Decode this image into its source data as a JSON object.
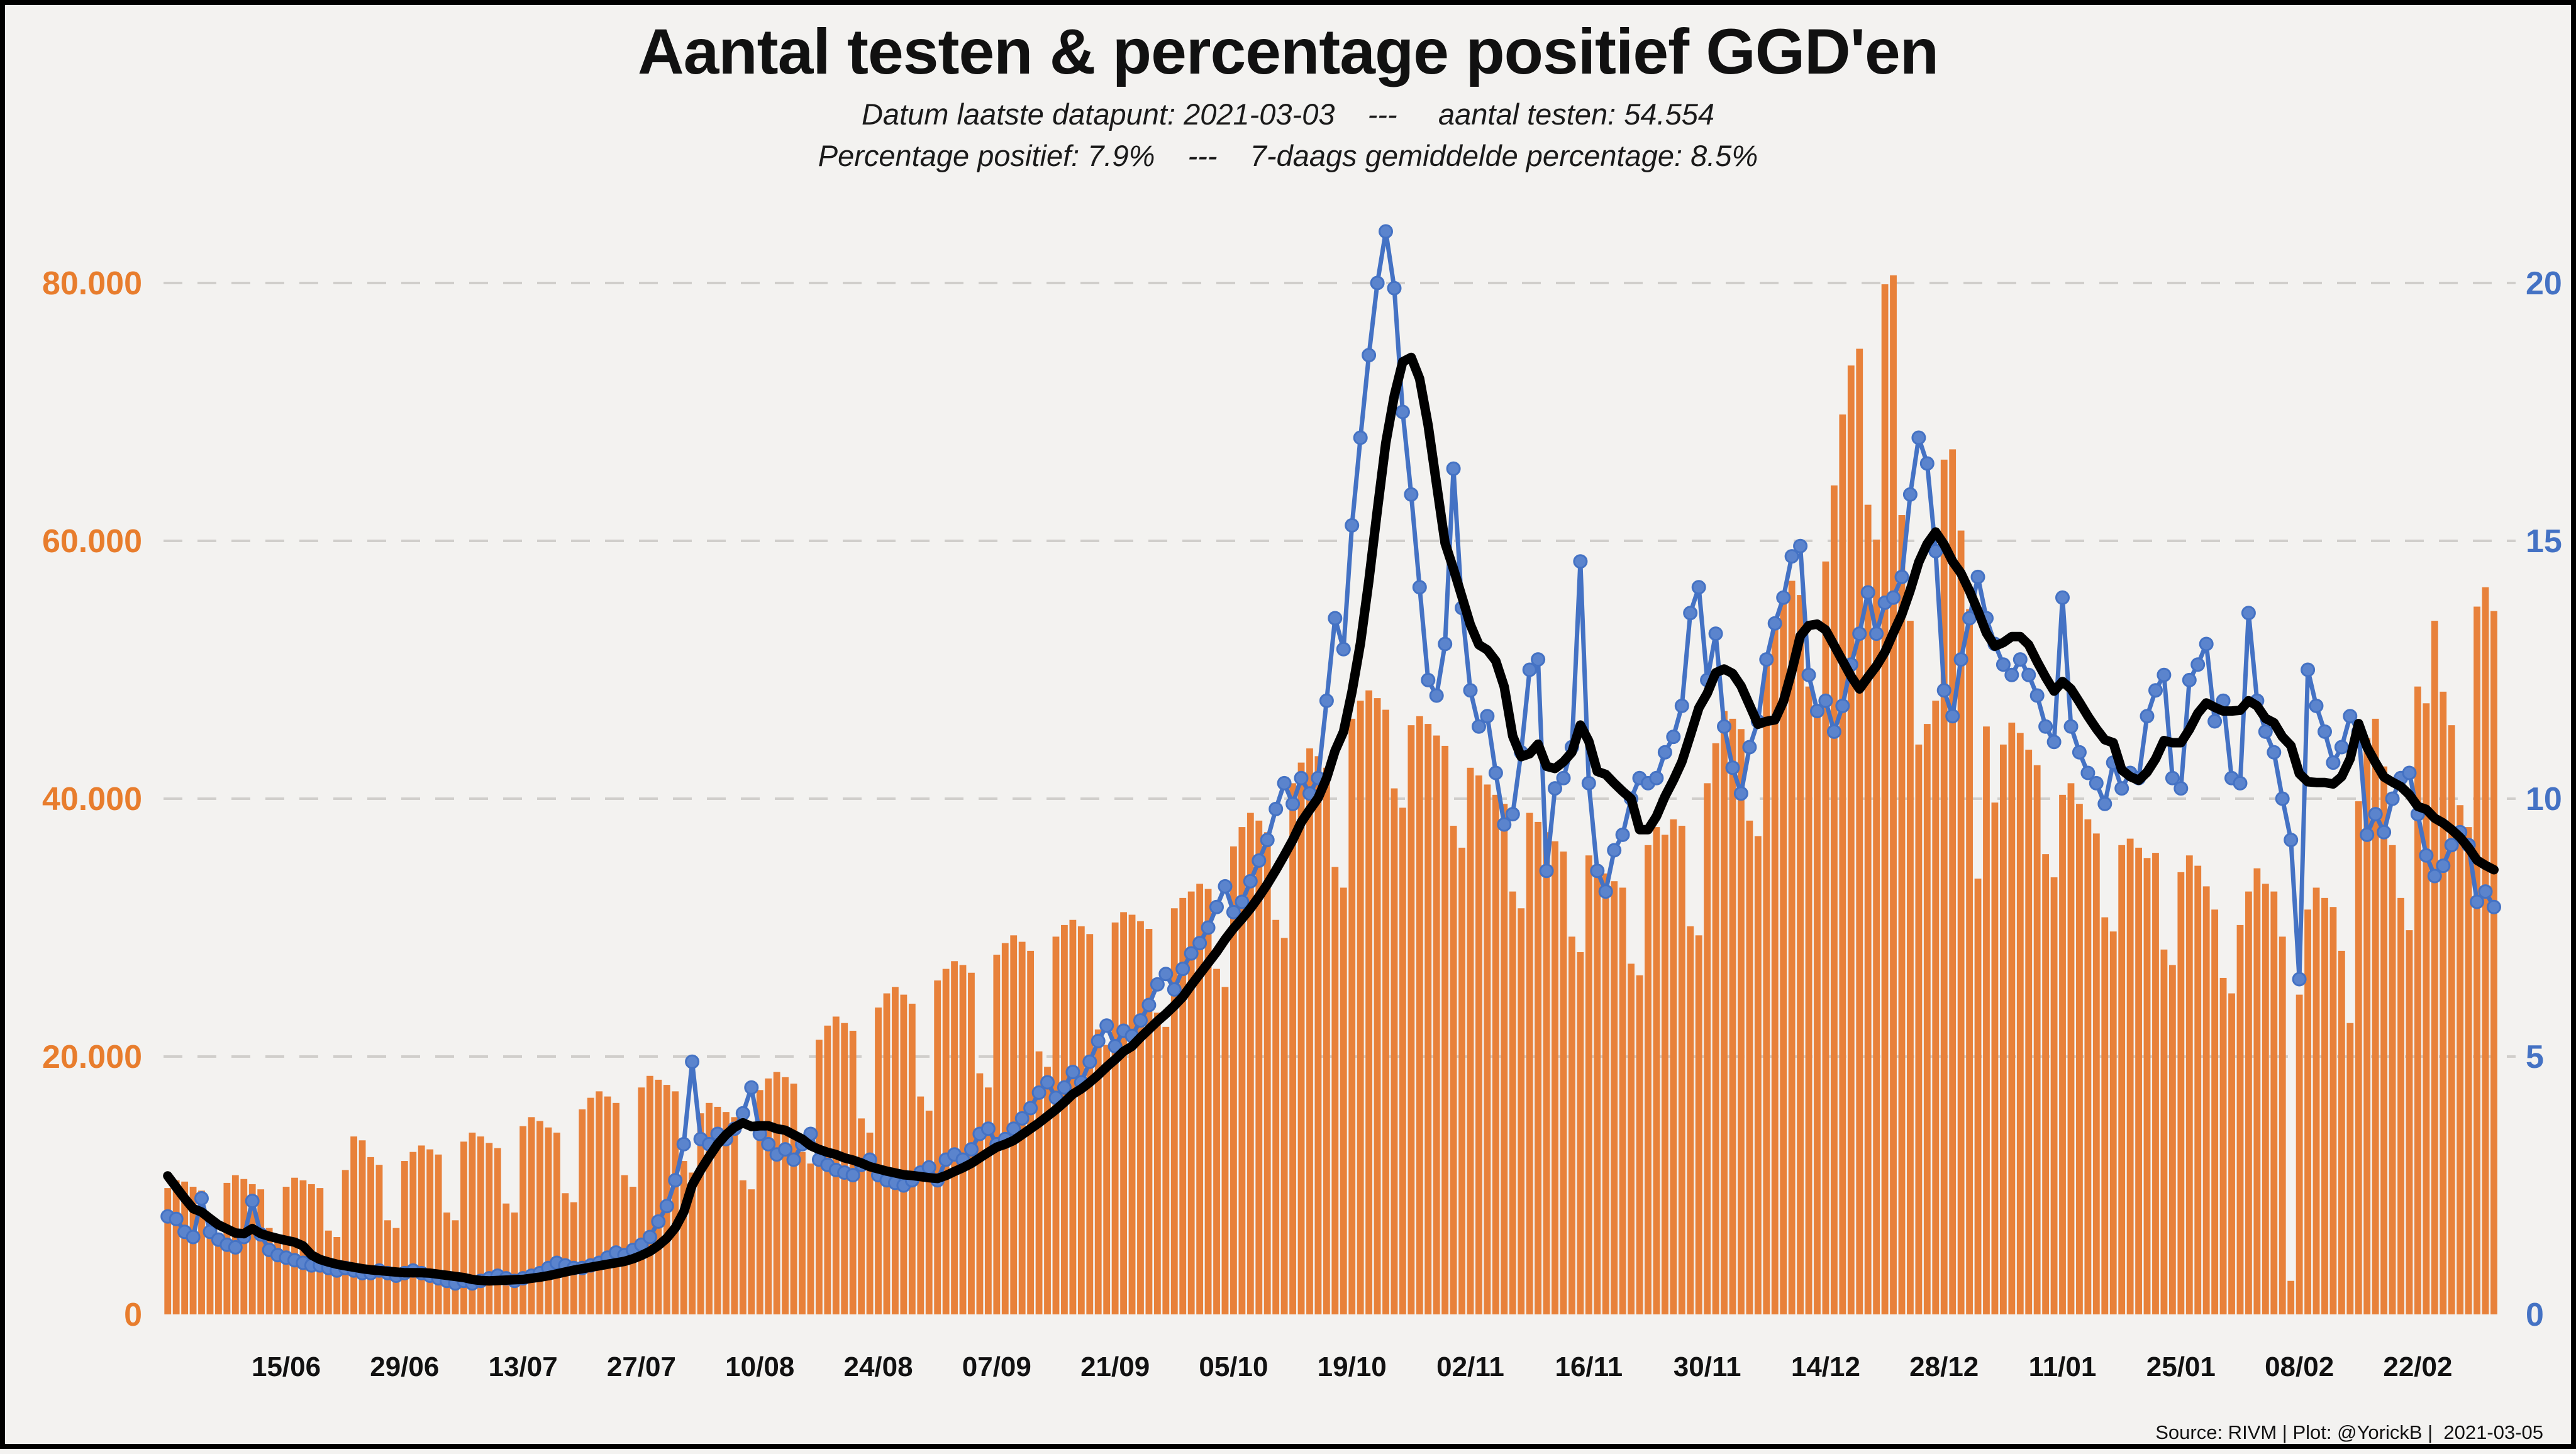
{
  "header": {
    "title": "Aantal testen & percentage positief GGD'en",
    "subtitle1": "Datum laatste datapunt: 2021-03-03    ---     aantal testen: 54.554",
    "subtitle2": "Percentage positief: 7.9%    ---    7-daags gemiddelde percentage: 8.5%"
  },
  "footer": {
    "source": "Source: RIVM | Plot: @YorickB |  2021-03-05"
  },
  "colors": {
    "background": "#f3f2f0",
    "bar": "#e8813a",
    "blue_line": "#4472c4",
    "blue_dot_fill": "#5b84cd",
    "avg_line": "#000000",
    "grid": "#d0cecb",
    "left_axis_text": "#e87d2d",
    "right_axis_text": "#4472c4",
    "x_axis_text": "#111111",
    "border": "#000000"
  },
  "chart_data": {
    "type": "bar",
    "title": "Aantal testen & percentage positief GGD'en",
    "xlabel": "",
    "ylabel_left": "aantal testen",
    "ylabel_right": "percentage positief",
    "grid": "dashed horizontal",
    "legend_position": "none",
    "start_date": "2020-06-01",
    "end_date": "2021-03-03",
    "x_tick_labels": [
      "15/06",
      "29/06",
      "13/07",
      "27/07",
      "10/08",
      "24/08",
      "07/09",
      "21/09",
      "05/10",
      "19/10",
      "02/11",
      "16/11",
      "30/11",
      "14/12",
      "28/12",
      "11/01",
      "25/01",
      "08/02",
      "22/02"
    ],
    "x_first_tick_day_index": 14,
    "x_tick_every_days": 14,
    "left_axis": {
      "ticks": [
        0,
        20000,
        40000,
        60000,
        80000
      ],
      "tick_labels": [
        "0",
        "20.000",
        "40.000",
        "60.000",
        "80.000"
      ],
      "range_max": 97000
    },
    "right_axis": {
      "ticks": [
        0,
        5,
        10,
        15,
        20
      ],
      "tick_labels": [
        "0",
        "5",
        "10",
        "15",
        "20"
      ],
      "range_max": 24.25,
      "scale_tests_per_pct": 4000
    },
    "series": [
      {
        "name": "aantal testen",
        "type": "bar",
        "values": [
          9800,
          10400,
          10300,
          9900,
          9600,
          6900,
          6300,
          10200,
          10800,
          10500,
          10100,
          9700,
          6700,
          6100,
          9900,
          10600,
          10400,
          10100,
          9800,
          6500,
          6000,
          11200,
          13800,
          13500,
          12200,
          11600,
          7300,
          6700,
          11900,
          12600,
          13100,
          12800,
          12400,
          7900,
          7300,
          13400,
          14100,
          13800,
          13300,
          12900,
          8600,
          7900,
          14600,
          15300,
          15000,
          14500,
          14100,
          9400,
          8700,
          15900,
          16800,
          17300,
          16900,
          16400,
          10800,
          9900,
          17600,
          18500,
          18200,
          17800,
          17300,
          11900,
          11000,
          15600,
          16400,
          16100,
          15700,
          15300,
          10400,
          9700,
          17400,
          18300,
          18800,
          18400,
          17900,
          12600,
          11700,
          21300,
          22400,
          23100,
          22600,
          22000,
          15200,
          14100,
          23800,
          24900,
          25400,
          24800,
          24100,
          16900,
          15800,
          25900,
          26800,
          27400,
          27100,
          26500,
          18700,
          17600,
          27900,
          28800,
          29400,
          28900,
          28200,
          20400,
          19200,
          29300,
          30200,
          30600,
          30100,
          29500,
          22100,
          20900,
          30400,
          31200,
          31000,
          30500,
          29900,
          23400,
          22300,
          31500,
          32300,
          32800,
          33400,
          33000,
          26800,
          25400,
          36300,
          37800,
          38900,
          38300,
          37400,
          30600,
          29200,
          41200,
          42800,
          43900,
          43300,
          42400,
          34700,
          33100,
          46200,
          47600,
          48400,
          47800,
          46900,
          40800,
          39300,
          45700,
          46400,
          45800,
          44900,
          44100,
          37900,
          36200,
          42400,
          41800,
          41100,
          40300,
          39600,
          32800,
          31500,
          38900,
          38200,
          37400,
          36700,
          35900,
          29300,
          28100,
          35600,
          34900,
          34200,
          33600,
          33100,
          27200,
          26300,
          36400,
          37800,
          37200,
          38400,
          37900,
          30100,
          29400,
          41200,
          44300,
          46800,
          46200,
          45400,
          38300,
          37100,
          50400,
          53800,
          55600,
          56900,
          55800,
          48700,
          46900,
          58400,
          64300,
          69800,
          73600,
          74900,
          62800,
          60100,
          79900,
          80600,
          62000,
          53800,
          44200,
          45800,
          47600,
          66300,
          67100,
          60800,
          54700,
          33800,
          45600,
          39700,
          44200,
          45900,
          45100,
          43800,
          42600,
          35700,
          33900,
          40300,
          41200,
          39600,
          38400,
          37300,
          30800,
          29700,
          36400,
          36900,
          36200,
          35400,
          35800,
          28300,
          27100,
          34300,
          35600,
          34800,
          33200,
          31400,
          26100,
          24900,
          30200,
          32800,
          34600,
          33400,
          32800,
          29300,
          2600,
          24800,
          31400,
          33100,
          32300,
          31600,
          28200,
          22600,
          39800,
          44700,
          46200,
          42500,
          36400,
          32300,
          29800,
          48700,
          47400,
          53800,
          48300,
          45700,
          39500,
          37800,
          54900,
          56400,
          54554
        ]
      },
      {
        "name": "percentage positief",
        "type": "line_markers",
        "values": [
          1.9,
          1.85,
          1.6,
          1.5,
          2.25,
          1.6,
          1.45,
          1.35,
          1.3,
          1.5,
          2.2,
          1.55,
          1.25,
          1.15,
          1.1,
          1.05,
          1.0,
          0.95,
          0.95,
          0.9,
          0.85,
          0.9,
          0.85,
          0.8,
          0.8,
          0.85,
          0.8,
          0.75,
          0.8,
          0.85,
          0.8,
          0.75,
          0.7,
          0.65,
          0.6,
          0.65,
          0.6,
          0.65,
          0.7,
          0.75,
          0.7,
          0.65,
          0.7,
          0.75,
          0.8,
          0.9,
          1.0,
          0.95,
          0.9,
          0.9,
          0.95,
          1.0,
          1.1,
          1.2,
          1.15,
          1.25,
          1.35,
          1.5,
          1.8,
          2.1,
          2.6,
          3.3,
          4.9,
          3.4,
          3.3,
          3.5,
          3.4,
          3.6,
          3.9,
          4.4,
          3.5,
          3.3,
          3.1,
          3.2,
          3.0,
          3.3,
          3.5,
          3.0,
          2.9,
          2.8,
          2.75,
          2.7,
          2.9,
          3.0,
          2.7,
          2.6,
          2.55,
          2.5,
          2.6,
          2.75,
          2.85,
          2.6,
          3.0,
          3.1,
          3.0,
          3.2,
          3.5,
          3.6,
          3.3,
          3.4,
          3.6,
          3.8,
          4.0,
          4.3,
          4.5,
          4.2,
          4.4,
          4.7,
          4.5,
          4.9,
          5.3,
          5.6,
          5.2,
          5.5,
          5.4,
          5.7,
          6.0,
          6.4,
          6.6,
          6.3,
          6.7,
          7.0,
          7.2,
          7.5,
          7.9,
          8.3,
          7.8,
          8.0,
          8.4,
          8.8,
          9.2,
          9.8,
          10.3,
          9.9,
          10.4,
          10.1,
          10.4,
          11.9,
          13.5,
          12.9,
          15.3,
          17.0,
          18.6,
          20.0,
          21.0,
          19.9,
          17.5,
          15.9,
          14.1,
          12.3,
          12.0,
          13.0,
          16.4,
          13.7,
          12.1,
          11.4,
          11.6,
          10.5,
          9.5,
          9.7,
          10.9,
          12.5,
          12.7,
          8.6,
          10.2,
          10.4,
          11.0,
          14.6,
          10.3,
          8.6,
          8.2,
          9.0,
          9.3,
          10.0,
          10.4,
          10.3,
          10.4,
          10.9,
          11.2,
          11.8,
          13.6,
          14.1,
          12.3,
          13.2,
          11.4,
          10.6,
          10.1,
          11.0,
          11.5,
          12.7,
          13.4,
          13.9,
          14.7,
          14.9,
          12.4,
          11.7,
          11.9,
          11.3,
          11.8,
          12.6,
          13.2,
          14.0,
          13.2,
          13.8,
          13.9,
          14.3,
          15.9,
          17.0,
          16.5,
          14.8,
          12.1,
          11.6,
          12.7,
          13.5,
          14.3,
          13.5,
          13.0,
          12.6,
          12.4,
          12.7,
          12.4,
          12.0,
          11.4,
          11.1,
          13.9,
          11.4,
          10.9,
          10.5,
          10.3,
          9.9,
          10.7,
          10.2,
          10.5,
          10.4,
          11.6,
          12.1,
          12.4,
          10.4,
          10.2,
          12.3,
          12.6,
          13.0,
          11.5,
          11.9,
          10.4,
          10.3,
          13.6,
          11.9,
          11.3,
          10.9,
          10.0,
          9.2,
          6.5,
          12.5,
          11.8,
          11.3,
          10.7,
          11.0,
          11.6,
          11.3,
          9.3,
          9.7,
          9.35,
          10.0,
          10.4,
          10.5,
          9.7,
          8.9,
          8.5,
          8.7,
          9.1,
          9.35,
          9.1,
          8.0,
          8.2,
          7.9
        ]
      },
      {
        "name": "7-daags gemiddelde percentage",
        "type": "line",
        "derived": "7-day rolling mean of percentage positief",
        "prewindow": [
          3.4,
          3.1,
          2.9,
          2.7,
          2.5,
          2.3
        ]
      }
    ]
  },
  "layout_values": {
    "last_test_count_label": "54.554",
    "last_pct_label": "7.9%",
    "last_avg_label": "8.5%"
  }
}
